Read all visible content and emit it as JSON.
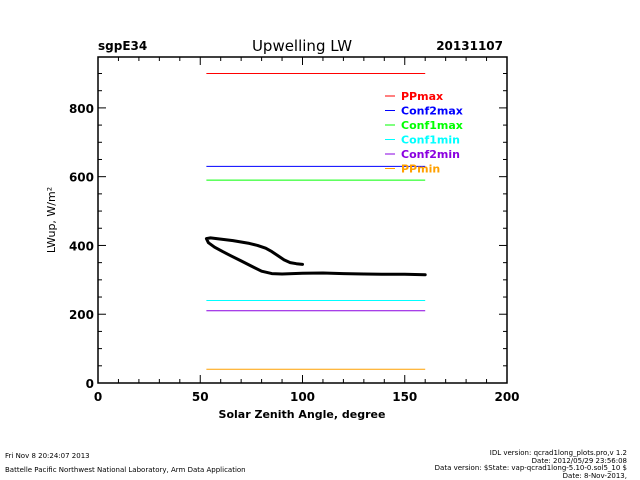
{
  "header": {
    "site": "sgpE34",
    "title": "Upwelling LW",
    "date": "20131107"
  },
  "footer": {
    "timestamp": "Fri Nov  8 20:24:07 2013",
    "institution": "Battelle Pacific Northwest National Laboratory, Arm Data Application",
    "idl_version": "IDL version: qcrad1long_plots.pro,v 1.2",
    "idl_date": "Date: 2012/05/29 23:56:08",
    "data_version": "Data version: $State: vap-qcrad1long-5.10-0.sol5_10 $",
    "data_date": "Date: 8-Nov-2013,"
  },
  "chart_data": {
    "type": "line",
    "title": "Upwelling LW",
    "xlabel": "Solar Zenith Angle, degree",
    "ylabel": "LWup, W/m²",
    "xlim": [
      0,
      200
    ],
    "ylim": [
      0,
      948
    ],
    "xticks": [
      0,
      50,
      100,
      150,
      200
    ],
    "yticks": [
      0,
      200,
      400,
      600,
      800
    ],
    "x_minor_step": 10,
    "y_minor_step": 50,
    "grid": false,
    "legend_position": "top-right",
    "thresholds": [
      {
        "name": "PPmax",
        "value": 900,
        "color": "#ff0000",
        "x_range": [
          53,
          160
        ]
      },
      {
        "name": "Conf2max",
        "value": 630,
        "color": "#0000ff",
        "x_range": [
          53,
          160
        ]
      },
      {
        "name": "Conf1max",
        "value": 590,
        "color": "#00ff00",
        "x_range": [
          53,
          160
        ]
      },
      {
        "name": "Conf1min",
        "value": 240,
        "color": "#00ffff",
        "x_range": [
          53,
          160
        ]
      },
      {
        "name": "Conf2min",
        "value": 210,
        "color": "#8a00e0",
        "x_range": [
          53,
          160
        ]
      },
      {
        "name": "PPmin",
        "value": 40,
        "color": "#ffa000",
        "x_range": [
          53,
          160
        ]
      }
    ],
    "series": [
      {
        "name": "LWup",
        "color": "#000000",
        "x": [
          100,
          97,
          94,
          91,
          88,
          85,
          82,
          78,
          74,
          70,
          66,
          62,
          58,
          55,
          53,
          54,
          57,
          61,
          65,
          70,
          75,
          80,
          85,
          90,
          95,
          100,
          110,
          120,
          130,
          140,
          150,
          160
        ],
        "y": [
          345,
          347,
          350,
          358,
          370,
          382,
          392,
          400,
          406,
          410,
          414,
          417,
          420,
          422,
          420,
          408,
          395,
          382,
          370,
          355,
          340,
          325,
          318,
          317,
          318,
          319,
          320,
          318,
          317,
          316,
          316,
          315
        ]
      }
    ]
  }
}
